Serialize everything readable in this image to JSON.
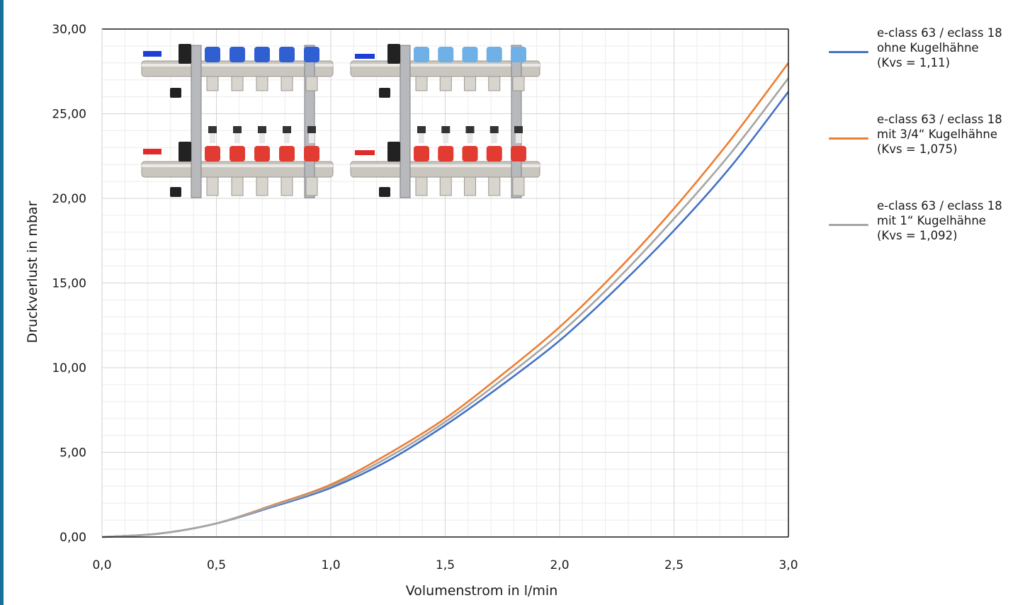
{
  "chart_data": {
    "type": "line",
    "title": "",
    "xlabel": "Volumenstrom in l/min",
    "ylabel": "Druckverlust in mbar",
    "xlim": [
      0,
      3
    ],
    "ylim": [
      0,
      30
    ],
    "x_ticks": [
      "0,0",
      "0,5",
      "1,0",
      "1,5",
      "2,0",
      "2,5",
      "3,0"
    ],
    "y_ticks": [
      "0,00",
      "5,00",
      "10,00",
      "15,00",
      "20,00",
      "25,00",
      "30,00"
    ],
    "grid": true,
    "legend_position": "right",
    "series": [
      {
        "name": "e-class 63 / eclass 18 ohne Kugelhähne (Kvs = 1,11)",
        "label_lines": [
          "e-class 63 / eclass 18",
          "ohne Kugelhähne",
          "(Kvs = 1,11)"
        ],
        "color": "#4472c4",
        "x": [
          0,
          0.25,
          0.5,
          0.75,
          1.0,
          1.25,
          1.5,
          1.75,
          2.0,
          2.25,
          2.5,
          2.75,
          3.0
        ],
        "y": [
          0,
          0.2,
          0.8,
          1.8,
          2.9,
          4.5,
          6.6,
          9.0,
          11.6,
          14.7,
          18.1,
          21.9,
          26.3
        ]
      },
      {
        "name": "e-class 63 / eclass 18 mit 3/4“ Kugelhähne (Kvs = 1,075)",
        "label_lines": [
          "e-class 63 / eclass 18",
          "mit 3/4“ Kugelhähne",
          "(Kvs = 1,075)"
        ],
        "color": "#ed7d31",
        "x": [
          0,
          0.25,
          0.5,
          0.75,
          1.0,
          1.25,
          1.5,
          1.75,
          2.0,
          2.25,
          2.5,
          2.75,
          3.0
        ],
        "y": [
          0,
          0.2,
          0.8,
          1.9,
          3.1,
          4.9,
          7.0,
          9.6,
          12.4,
          15.7,
          19.4,
          23.5,
          28.0
        ]
      },
      {
        "name": "e-class 63 / eclass 18 mit 1“ Kugelhähne (Kvs = 1,092)",
        "label_lines": [
          "e-class 63 / eclass 18",
          "mit 1“ Kugelhähne",
          "(Kvs = 1,092)"
        ],
        "color": "#a5a5a5",
        "x": [
          0,
          0.25,
          0.5,
          0.75,
          1.0,
          1.25,
          1.5,
          1.75,
          2.0,
          2.25,
          2.5,
          2.75,
          3.0
        ],
        "y": [
          0,
          0.2,
          0.8,
          1.85,
          3.0,
          4.7,
          6.8,
          9.3,
          12.0,
          15.2,
          18.8,
          22.7,
          27.1
        ]
      }
    ],
    "annotations": [
      {
        "type": "product-image",
        "name": "manifold-with-ball-valves"
      },
      {
        "type": "product-image",
        "name": "manifold-without-ball-valves"
      }
    ]
  }
}
